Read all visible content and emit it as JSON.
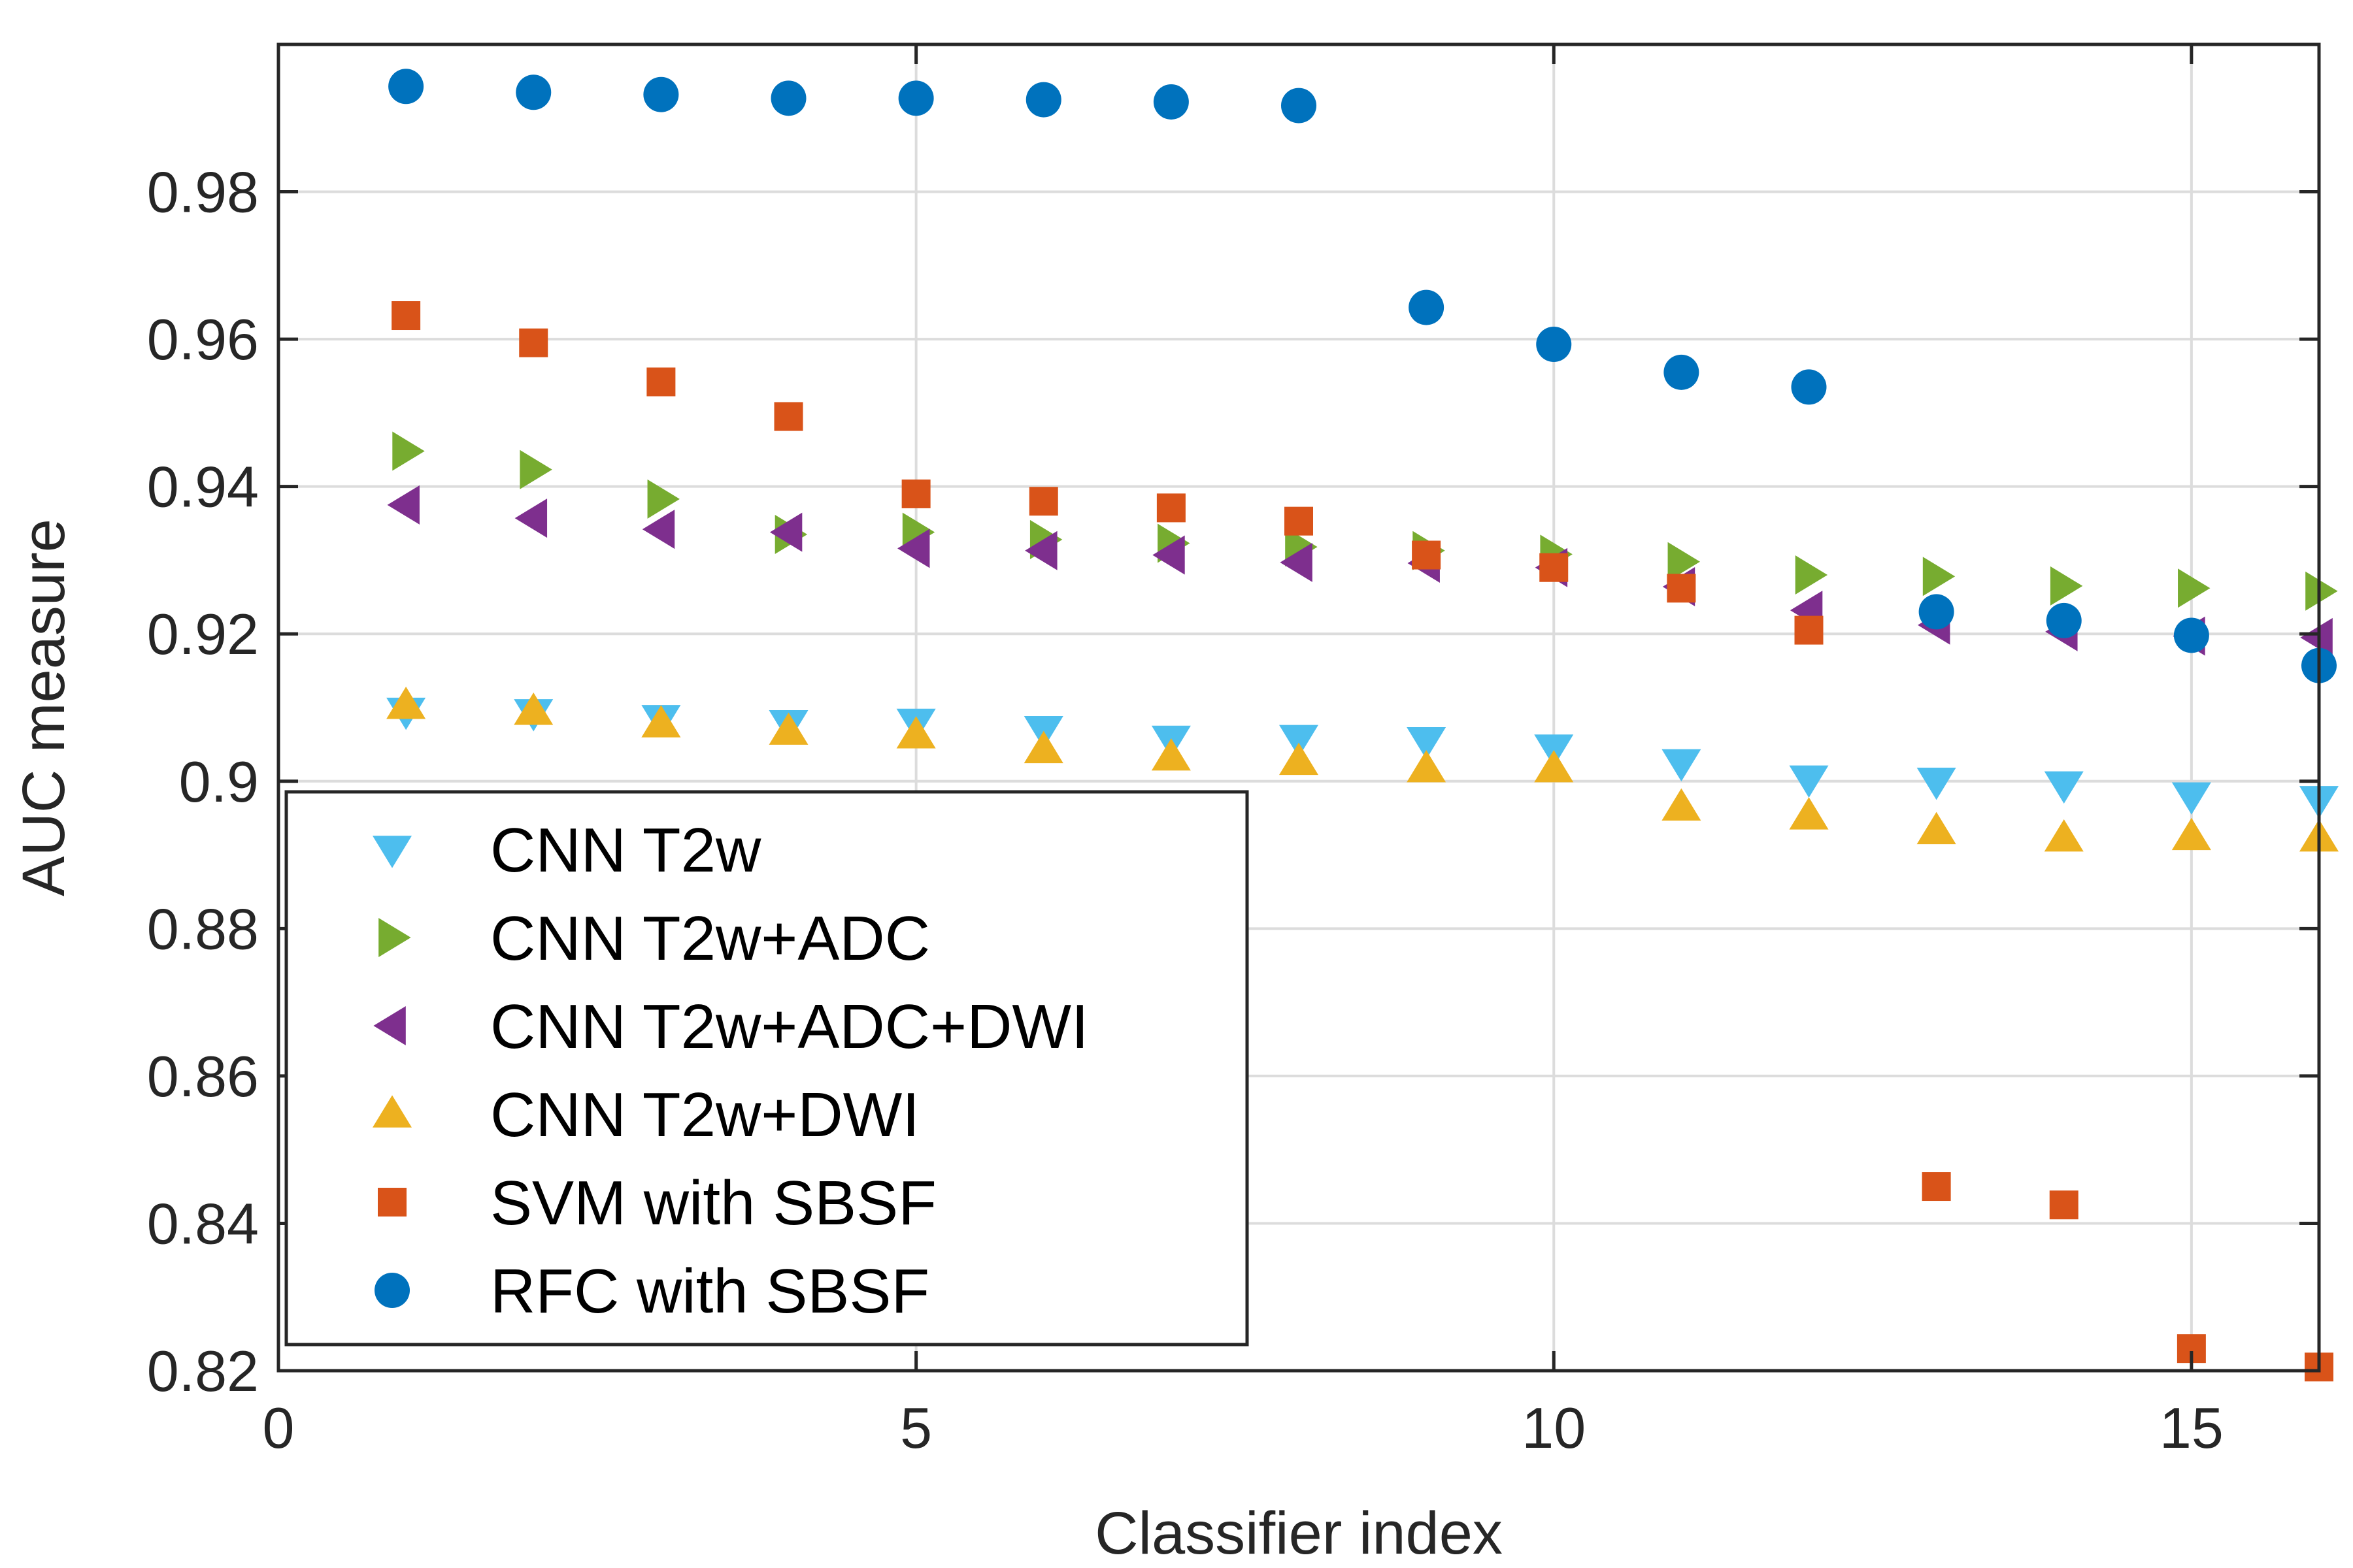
{
  "chart_data": {
    "type": "scatter",
    "xlabel": "Classifier index",
    "ylabel": "AUC measure",
    "xlim": [
      0,
      16
    ],
    "ylim": [
      0.82,
      1.0
    ],
    "xticks": [
      0,
      5,
      10,
      15
    ],
    "xtick_labels": [
      "0",
      "5",
      "10",
      "15"
    ],
    "yticks": [
      0.82,
      0.84,
      0.86,
      0.88,
      0.9,
      0.92,
      0.94,
      0.96,
      0.98
    ],
    "ytick_labels": [
      "0.82",
      "0.84",
      "0.86",
      "0.88",
      "0.9",
      "0.92",
      "0.94",
      "0.96",
      "0.98"
    ],
    "grid": true,
    "legend_position": "bottom-left",
    "x": [
      1,
      2,
      3,
      4,
      5,
      6,
      7,
      8,
      9,
      10,
      11,
      12,
      13,
      14,
      15,
      16
    ],
    "series": [
      {
        "name": "CNN T2w",
        "marker": "triangle-down",
        "color": "#4DBEEE",
        "values": [
          0.9095,
          0.9093,
          0.9085,
          0.9078,
          0.908,
          0.907,
          0.9057,
          0.9058,
          0.9055,
          0.9045,
          0.9025,
          0.9003,
          0.9,
          0.8995,
          0.898,
          0.8975
        ]
      },
      {
        "name": "CNN T2w+ADC",
        "marker": "triangle-right",
        "color": "#77AC30",
        "values": [
          0.9448,
          0.9423,
          0.9383,
          0.9335,
          0.9338,
          0.9328,
          0.9323,
          0.9318,
          0.9313,
          0.9308,
          0.9298,
          0.928,
          0.9278,
          0.9265,
          0.9262,
          0.9258
        ]
      },
      {
        "name": "CNN T2w+ADC+DWI",
        "marker": "triangle-left",
        "color": "#7E2F8E",
        "values": [
          0.9375,
          0.9357,
          0.9342,
          0.9338,
          0.9316,
          0.9313,
          0.9307,
          0.9297,
          0.9296,
          0.929,
          0.9264,
          0.9232,
          0.9212,
          0.9203,
          0.9197,
          0.9195
        ]
      },
      {
        "name": "CNN T2w+DWI",
        "marker": "triangle-up",
        "color": "#EDB120",
        "values": [
          0.9103,
          0.9095,
          0.9078,
          0.9068,
          0.9063,
          0.9043,
          0.9033,
          0.9027,
          0.9017,
          0.9017,
          0.8965,
          0.8953,
          0.8933,
          0.8923,
          0.8925,
          0.8923
        ]
      },
      {
        "name": "SVM with SBSF",
        "marker": "square",
        "color": "#D95319",
        "values": [
          0.9632,
          0.9595,
          0.9542,
          0.9495,
          0.939,
          0.938,
          0.9371,
          0.9353,
          0.9307,
          0.929,
          0.9262,
          0.9205,
          0.845,
          0.8425,
          0.823,
          0.8205
        ]
      },
      {
        "name": "RFC with SBSF",
        "marker": "circle",
        "color": "#0072BD",
        "values": [
          0.9943,
          0.9935,
          0.9932,
          0.9927,
          0.9927,
          0.9925,
          0.9922,
          0.9917,
          0.9643,
          0.9593,
          0.9555,
          0.9535,
          0.923,
          0.9218,
          0.9198,
          0.9157
        ]
      }
    ]
  }
}
